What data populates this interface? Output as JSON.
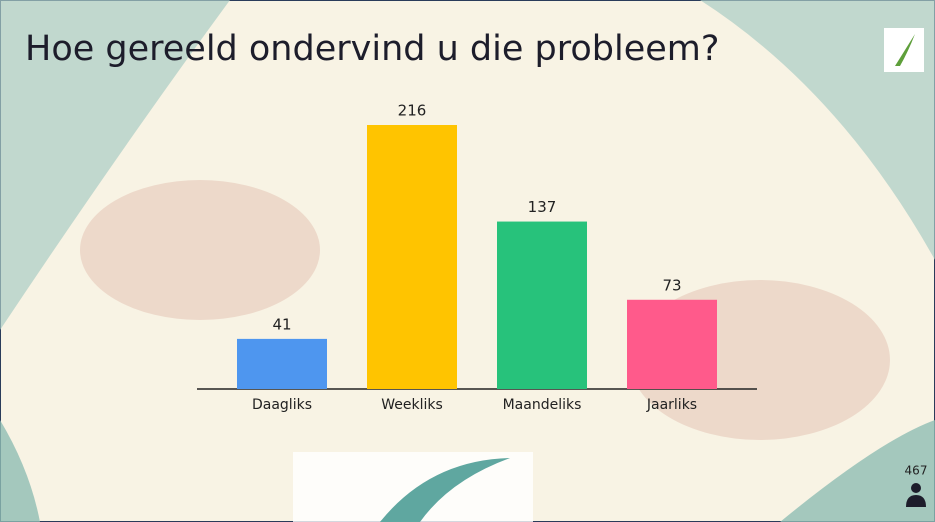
{
  "chart_data": {
    "type": "bar",
    "title": "Hoe gereeld ondervind u die probleem?",
    "categories": [
      "Daagliks",
      "Weekliks",
      "Maandeliks",
      "Jaarliks"
    ],
    "values": [
      41,
      216,
      137,
      73
    ],
    "colors": [
      "#4e96ef",
      "#ffc400",
      "#27c27b",
      "#ff5a8b"
    ]
  },
  "participants": 467
}
